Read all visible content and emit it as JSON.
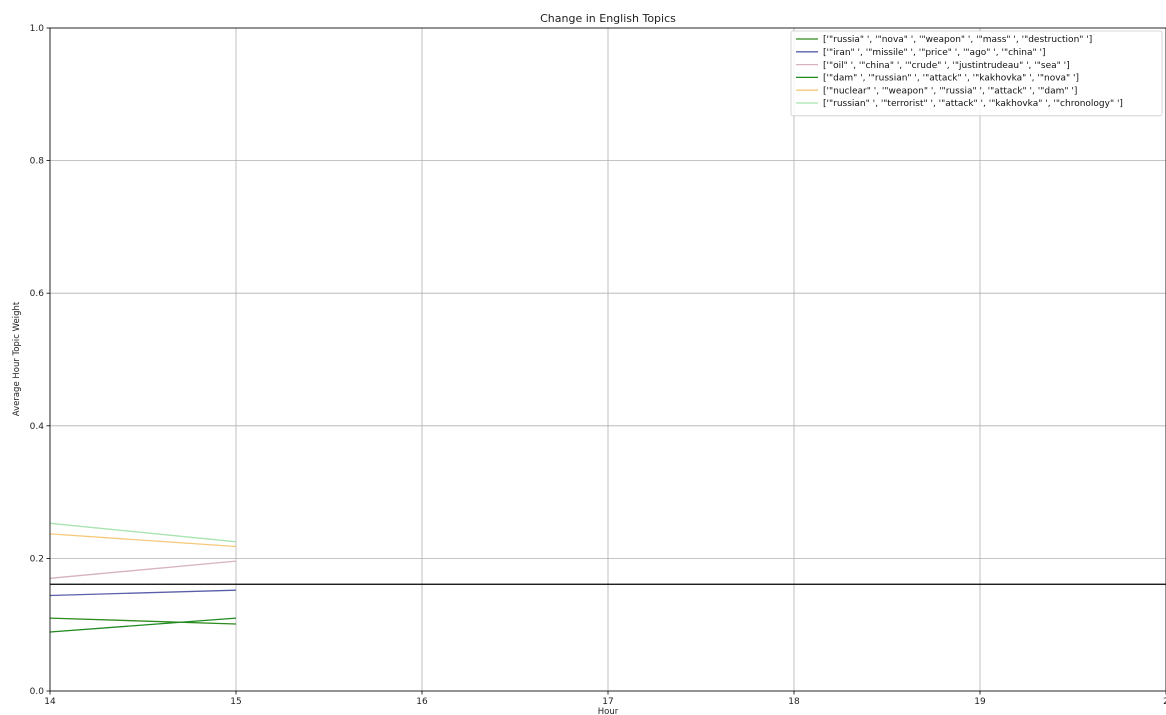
{
  "chart_data": {
    "type": "line",
    "title": "Change in English Topics",
    "xlabel": "Hour",
    "ylabel": "Average Hour Topic Weight",
    "xlim": [
      14,
      20
    ],
    "ylim": [
      0.0,
      1.0
    ],
    "x_ticks": [
      "14",
      "15",
      "16",
      "17",
      "18",
      "19",
      "2"
    ],
    "y_ticks": [
      "0.0",
      "0.2",
      "0.4",
      "0.6",
      "0.8",
      "1.0"
    ],
    "grid": true,
    "legend_position": "top-right",
    "reference_line": {
      "y": 0.161,
      "color": "#000000"
    },
    "x": [
      14,
      15
    ],
    "series": [
      {
        "name": "['\"russia\" ', '\"nova\" ', '\"weapon\" ', '\"mass\" ', '\"destruction\" ']",
        "color": "#2e8b1e",
        "values": [
          0.11,
          0.101
        ]
      },
      {
        "name": "['\"iran\" ', '\"missile\" ', '\"price\" ', '\"ago\" ', '\"china\" ']",
        "color": "#5a5faa",
        "values": [
          0.144,
          0.152
        ]
      },
      {
        "name": "['\"oil\" ', '\"china\" ', '\"crude\" ', '\"justintrudeau\" ', '\"sea\" ']",
        "color": "#d7b2c0",
        "values": [
          0.17,
          0.196
        ]
      },
      {
        "name": "['\"dam\" ', '\"russian\" ', '\"attack\" ', '\"kakhovka\" ', '\"nova\" ']",
        "color": "#1f8a1f",
        "values": [
          0.089,
          0.11
        ]
      },
      {
        "name": "['\"nuclear\" ', '\"weapon\" ', '\"russia\" ', '\"attack\" ', '\"dam\" ']",
        "color": "#f5c97a",
        "values": [
          0.237,
          0.218
        ]
      },
      {
        "name": "['\"russian\" ', '\"terrorist\" ', '\"attack\" ', '\"kakhovka\" ', '\"chronology\" ']",
        "color": "#a8e4b0",
        "values": [
          0.253,
          0.225
        ]
      }
    ]
  }
}
